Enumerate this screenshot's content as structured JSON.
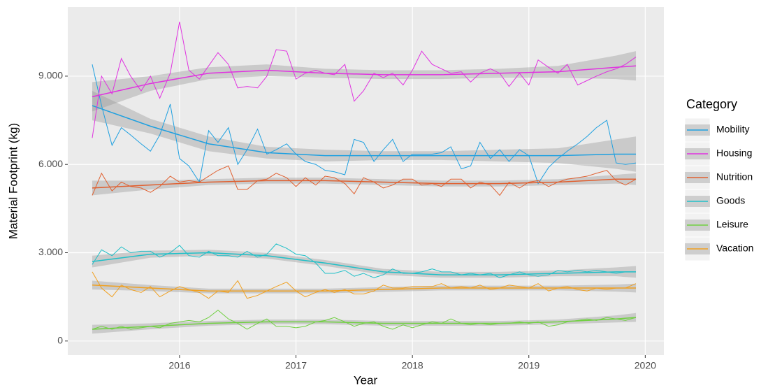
{
  "chart_data": {
    "type": "line",
    "x_label": "Year",
    "y_label": "Material Footprint (kg)",
    "legend_title": "Category",
    "legend": "right",
    "grid": true,
    "xlim": [
      2015.04,
      2020.16
    ],
    "ylim": [
      -480,
      11350
    ],
    "xticks": [
      2016,
      2017,
      2018,
      2019,
      2020
    ],
    "yticks": [
      0,
      {
        "value": 3000,
        "label": "3.000"
      },
      {
        "value": 6000,
        "label": "6.000"
      },
      {
        "value": 9000,
        "label": "9.000"
      }
    ],
    "x": [
      2015.25,
      2015.33,
      2015.42,
      2015.5,
      2015.58,
      2015.67,
      2015.75,
      2015.83,
      2015.92,
      2016,
      2016.08,
      2016.17,
      2016.25,
      2016.33,
      2016.42,
      2016.5,
      2016.58,
      2016.67,
      2016.75,
      2016.83,
      2016.92,
      2017,
      2017.08,
      2017.17,
      2017.25,
      2017.33,
      2017.42,
      2017.5,
      2017.58,
      2017.67,
      2017.75,
      2017.83,
      2017.92,
      2018,
      2018.08,
      2018.17,
      2018.25,
      2018.33,
      2018.42,
      2018.5,
      2018.58,
      2018.67,
      2018.75,
      2018.83,
      2018.92,
      2019,
      2019.08,
      2019.17,
      2019.25,
      2019.33,
      2019.42,
      2019.5,
      2019.58,
      2019.67,
      2019.75,
      2019.83,
      2019.92
    ],
    "trend_x": [
      2015.25,
      2015.75,
      2016.25,
      2016.75,
      2017.25,
      2017.75,
      2018.25,
      2018.75,
      2019.25,
      2019.75,
      2019.92
    ],
    "series": [
      {
        "name": "Mobility",
        "color": "#1fa0e0",
        "values": [
          9400,
          8000,
          6650,
          7250,
          7000,
          6700,
          6450,
          7000,
          8050,
          6200,
          5950,
          5400,
          7150,
          6750,
          7250,
          6000,
          6500,
          7200,
          6350,
          6500,
          6700,
          6350,
          6100,
          6000,
          5800,
          5750,
          5650,
          6850,
          6750,
          6100,
          6500,
          6850,
          6100,
          6350,
          6350,
          6350,
          6400,
          6600,
          5850,
          5950,
          6750,
          6200,
          6500,
          6100,
          6500,
          6300,
          5350,
          5900,
          6200,
          6450,
          6700,
          6950,
          7250,
          7500,
          6050,
          6000,
          6050
        ],
        "smooth": [
          8000,
          7300,
          6700,
          6400,
          6300,
          6300,
          6300,
          6300,
          6300,
          6350,
          6350
        ],
        "lower": [
          7500,
          7050,
          6450,
          6200,
          6100,
          6150,
          6150,
          6100,
          6050,
          5850,
          5750
        ],
        "upper": [
          8500,
          7550,
          6950,
          6600,
          6500,
          6450,
          6450,
          6500,
          6550,
          6850,
          6950
        ]
      },
      {
        "name": "Housing",
        "color": "#e032e0",
        "values": [
          6900,
          9000,
          8400,
          9600,
          9000,
          8500,
          9000,
          8250,
          9100,
          10850,
          9200,
          8900,
          9350,
          9800,
          9400,
          8600,
          8650,
          8600,
          9000,
          9900,
          9850,
          8900,
          9100,
          9200,
          9100,
          9050,
          9400,
          8150,
          8500,
          9100,
          8950,
          9100,
          8700,
          9200,
          9850,
          9400,
          9250,
          9100,
          9150,
          8800,
          9100,
          9250,
          9100,
          8650,
          9100,
          8700,
          9550,
          9300,
          9100,
          9400,
          8700,
          8850,
          9000,
          9150,
          9250,
          9400,
          9650
        ],
        "smooth": [
          8300,
          8750,
          9100,
          9200,
          9100,
          9050,
          9050,
          9100,
          9150,
          9300,
          9350
        ],
        "lower": [
          7800,
          8500,
          8900,
          9000,
          8950,
          8900,
          8900,
          8950,
          8950,
          8900,
          8850
        ],
        "upper": [
          8800,
          9000,
          9300,
          9400,
          9250,
          9200,
          9200,
          9250,
          9350,
          9700,
          9850
        ]
      },
      {
        "name": "Nutrition",
        "color": "#e06030",
        "values": [
          4950,
          5700,
          5100,
          5400,
          5250,
          5200,
          5050,
          5250,
          5600,
          5400,
          5450,
          5400,
          5600,
          5800,
          5950,
          5150,
          5150,
          5450,
          5500,
          5700,
          5550,
          5250,
          5550,
          5300,
          5600,
          5550,
          5350,
          5000,
          5550,
          5400,
          5200,
          5300,
          5500,
          5500,
          5300,
          5350,
          5250,
          5500,
          5500,
          5200,
          5400,
          5300,
          4950,
          5400,
          5200,
          5400,
          5450,
          5250,
          5400,
          5500,
          5550,
          5600,
          5700,
          5800,
          5450,
          5300,
          5500
        ],
        "smooth": [
          5200,
          5300,
          5400,
          5450,
          5450,
          5400,
          5350,
          5350,
          5400,
          5500,
          5500
        ],
        "lower": [
          4950,
          5150,
          5300,
          5350,
          5350,
          5300,
          5250,
          5250,
          5300,
          5350,
          5300
        ],
        "upper": [
          5450,
          5450,
          5500,
          5550,
          5550,
          5500,
          5450,
          5450,
          5500,
          5650,
          5700
        ]
      },
      {
        "name": "Goods",
        "color": "#20c0c8",
        "values": [
          2600,
          3100,
          2900,
          3200,
          3000,
          3050,
          3050,
          2850,
          3000,
          3250,
          2900,
          2850,
          3050,
          2900,
          2900,
          2850,
          3050,
          2850,
          2950,
          3300,
          3150,
          2950,
          2900,
          2650,
          2300,
          2300,
          2400,
          2200,
          2300,
          2150,
          2250,
          2450,
          2300,
          2300,
          2350,
          2450,
          2350,
          2350,
          2250,
          2300,
          2250,
          2300,
          2150,
          2250,
          2350,
          2250,
          2200,
          2250,
          2400,
          2350,
          2400,
          2350,
          2400,
          2350,
          2300,
          2350,
          2350
        ],
        "smooth": [
          2700,
          2950,
          3000,
          2900,
          2650,
          2350,
          2250,
          2250,
          2300,
          2350,
          2350
        ],
        "lower": [
          2500,
          2830,
          2900,
          2800,
          2550,
          2250,
          2150,
          2150,
          2200,
          2200,
          2150
        ],
        "upper": [
          2900,
          3070,
          3100,
          3000,
          2750,
          2450,
          2350,
          2350,
          2400,
          2500,
          2550
        ]
      },
      {
        "name": "Leisure",
        "color": "#70d040",
        "values": [
          400,
          500,
          400,
          500,
          400,
          450,
          500,
          450,
          600,
          650,
          700,
          650,
          800,
          1050,
          750,
          600,
          400,
          600,
          750,
          500,
          500,
          450,
          500,
          650,
          700,
          800,
          650,
          500,
          600,
          650,
          500,
          400,
          550,
          450,
          550,
          650,
          600,
          750,
          600,
          550,
          600,
          550,
          600,
          600,
          650,
          600,
          650,
          500,
          550,
          650,
          700,
          750,
          700,
          800,
          750,
          700,
          800
        ],
        "smooth": [
          400,
          500,
          600,
          650,
          650,
          600,
          600,
          600,
          650,
          750,
          800
        ],
        "lower": [
          250,
          400,
          520,
          570,
          570,
          520,
          520,
          520,
          570,
          630,
          650
        ],
        "upper": [
          550,
          600,
          680,
          730,
          730,
          680,
          680,
          680,
          730,
          870,
          950
        ]
      },
      {
        "name": "Vacation",
        "color": "#f0a020",
        "values": [
          2350,
          1800,
          1500,
          1900,
          1750,
          1650,
          1850,
          1500,
          1700,
          1850,
          1750,
          1650,
          1450,
          1700,
          1650,
          2050,
          1450,
          1550,
          1700,
          1850,
          2000,
          1700,
          1500,
          1650,
          1750,
          1650,
          1750,
          1600,
          1600,
          1700,
          1900,
          1800,
          1800,
          1850,
          1850,
          1850,
          1950,
          1800,
          1850,
          1800,
          1900,
          1750,
          1800,
          1900,
          1850,
          1800,
          1950,
          1700,
          1800,
          1850,
          1750,
          1700,
          1800,
          1750,
          1800,
          1800,
          1950
        ],
        "smooth": [
          1900,
          1800,
          1700,
          1700,
          1700,
          1750,
          1800,
          1800,
          1800,
          1800,
          1800
        ],
        "lower": [
          1750,
          1700,
          1620,
          1620,
          1620,
          1670,
          1720,
          1720,
          1720,
          1680,
          1650
        ],
        "upper": [
          2050,
          1900,
          1780,
          1780,
          1780,
          1830,
          1880,
          1880,
          1880,
          1920,
          1950
        ]
      }
    ]
  }
}
